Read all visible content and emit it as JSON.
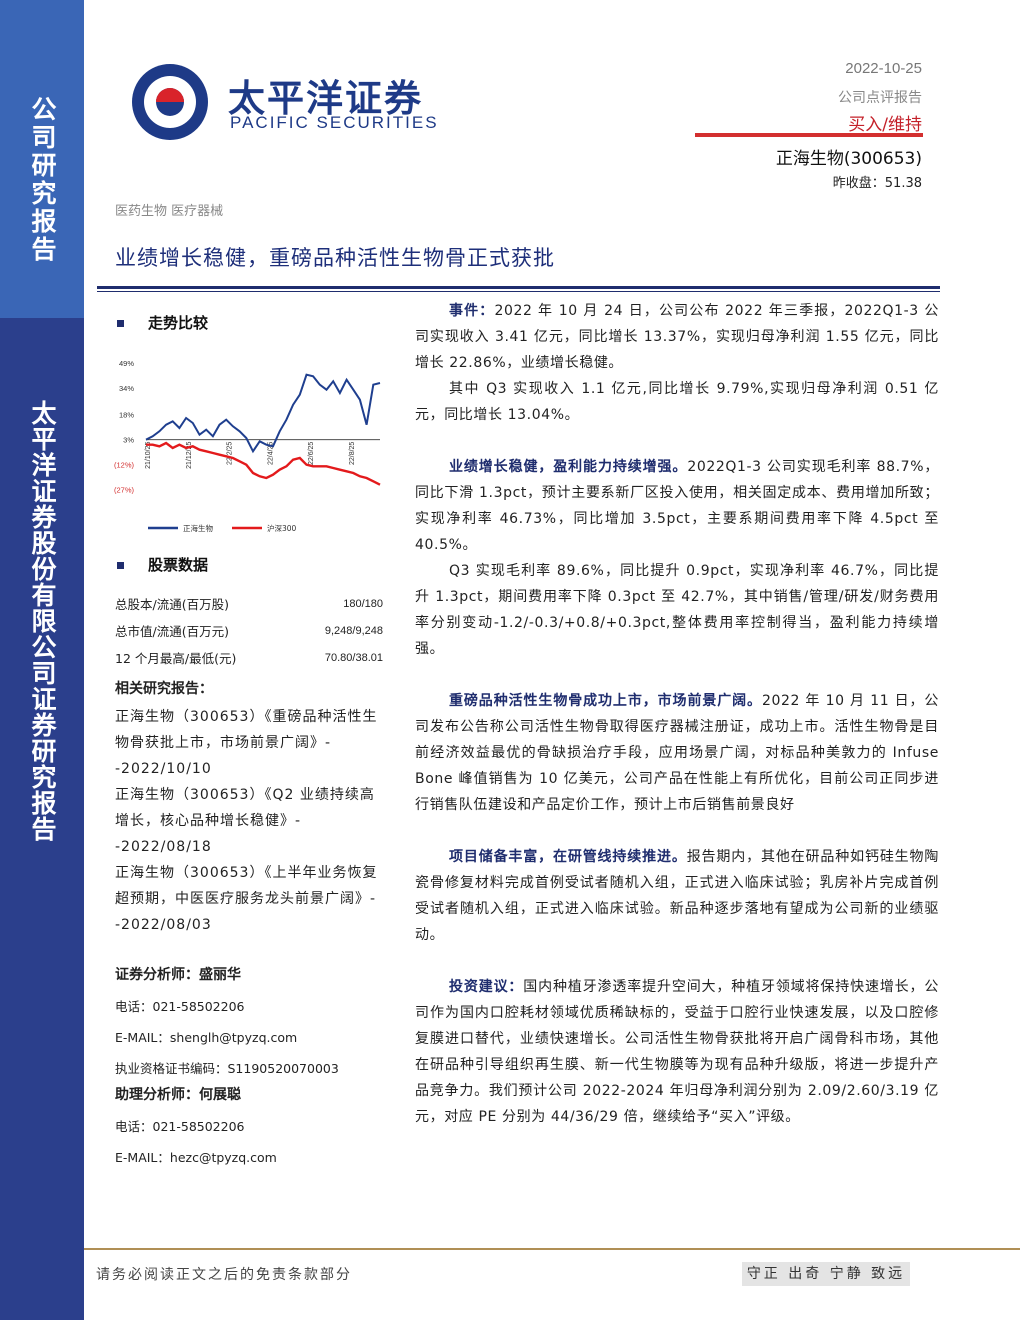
{
  "sidebar": {
    "label_top": "公司研究报告",
    "label_bottom": "太平洋证券股份有限公司证券研究报告"
  },
  "header": {
    "brand_cn": "太平洋证券",
    "brand_en": "PACIFIC SECURITIES",
    "date": "2022-10-25",
    "report_type": "公司点评报告",
    "rating": "买入/维持",
    "company": "正海生物(300653)",
    "close_price": "昨收盘：51.38",
    "industry": "医药生物  医疗器械",
    "title": "业绩增长稳健，重磅品种活性生物骨正式获批"
  },
  "trend": {
    "heading": "走势比较",
    "chart_data": {
      "type": "line",
      "y_ticks": [
        "49%",
        "34%",
        "18%",
        "3%",
        "(12%)",
        "(27%)"
      ],
      "ylim": [
        -32,
        52
      ],
      "x_ticks": [
        "21/10/25",
        "21/12/25",
        "22/2/25",
        "22/4/25",
        "22/6/25",
        "22/8/25"
      ],
      "series": [
        {
          "name": "正海生物",
          "color": "#1f3f8f",
          "values": [
            3,
            5,
            8,
            12,
            14,
            10,
            16,
            13,
            6,
            9,
            5,
            12,
            15,
            11,
            8,
            4,
            -4,
            2,
            0,
            -1,
            8,
            15,
            24,
            30,
            42,
            41,
            36,
            33,
            38,
            31,
            39,
            33,
            27,
            12,
            36,
            37
          ]
        },
        {
          "name": "沪深300",
          "color": "#e31a1c",
          "values": [
            0,
            0,
            -1,
            1,
            -2,
            0,
            -2,
            -1,
            -3,
            -4,
            -5,
            -6,
            -7,
            -8,
            -10,
            -12,
            -17,
            -19,
            -20,
            -18,
            -15,
            -13,
            -9,
            -8,
            -12,
            -13,
            -13,
            -13,
            -14,
            -15,
            -16,
            -17,
            -19,
            -20,
            -22,
            -24
          ]
        }
      ]
    }
  },
  "stock_data": {
    "heading": "股票数据",
    "rows": [
      {
        "label": "总股本/流通(百万股)",
        "value": "180/180"
      },
      {
        "label": "总市值/流通(百万元)",
        "value": "9,248/9,248"
      },
      {
        "label": "12 个月最高/最低(元)",
        "value": "70.80/38.01"
      }
    ]
  },
  "related_reports": {
    "heading": "相关研究报告：",
    "items": [
      "正海生物（300653）《重磅品种活性生物骨获批上市，市场前景广阔》--2022/10/10",
      "正海生物（300653）《Q2 业绩持续高增长，核心品种增长稳健》--2022/08/18",
      "正海生物（300653）《上半年业务恢复超预期，中医医疗服务龙头前景广阔》--2022/08/03"
    ]
  },
  "analyst": {
    "heading": "证券分析师：盛丽华",
    "phone": "电话：021-58502206",
    "email": "E-MAIL：shenglh@tpyzq.com",
    "cert": "执业资格证书编码：S1190520070003"
  },
  "assistant": {
    "heading": "助理分析师：何展聪",
    "phone": "电话：021-58502206",
    "email": "E-MAIL：hezc@tpyzq.com"
  },
  "body": {
    "p1_hl": "事件：",
    "p1": "2022 年 10 月 24 日，公司公布 2022 年三季报，2022Q1-3 公司实现收入 3.41 亿元，同比增长 13.37%，实现归母净利润 1.55 亿元，同比增长 22.86%，业绩增长稳健。",
    "p2": "其中 Q3 实现收入 1.1 亿元,同比增长 9.79%,实现归母净利润 0.51 亿元，同比增长 13.04%。",
    "p3_hl": "业绩增长稳健，盈利能力持续增强。",
    "p3": "2022Q1-3 公司实现毛利率 88.7%，同比下滑 1.3pct，预计主要系新厂区投入使用，相关固定成本、费用增加所致；实现净利率 46.73%，同比增加 3.5pct，主要系期间费用率下降 4.5pct 至 40.5%。",
    "p4": "Q3 实现毛利率 89.6%，同比提升 0.9pct，实现净利率 46.7%，同比提升 1.3pct，期间费用率下降 0.3pct 至 42.7%，其中销售/管理/研发/财务费用率分别变动-1.2/-0.3/+0.8/+0.3pct,整体费用率控制得当，盈利能力持续增强。",
    "p5_hl": "重磅品种活性生物骨成功上市，市场前景广阔。",
    "p5": "2022 年 10 月 11 日，公司发布公告称公司活性生物骨取得医疗器械注册证，成功上市。活性生物骨是目前经济效益最优的骨缺损治疗手段，应用场景广阔，对标品种美敦力的 Infuse Bone 峰值销售为 10 亿美元，公司产品在性能上有所优化，目前公司正同步进行销售队伍建设和产品定价工作，预计上市后销售前景良好",
    "p6_hl": "项目储备丰富，在研管线持续推进。",
    "p6": "报告期内，其他在研品种如钙硅生物陶瓷骨修复材料完成首例受试者随机入组，正式进入临床试验；乳房补片完成首例受试者随机入组，正式进入临床试验。新品种逐步落地有望成为公司新的业绩驱动。",
    "p7_hl": "投资建议：",
    "p7": "国内种植牙渗透率提升空间大，种植牙领域将保持快速增长，公司作为国内口腔耗材领域优质稀缺标的，受益于口腔行业快速发展，以及口腔修复膜进口替代，业绩快速增长。公司活性生物骨获批将开启广阔骨科市场，其他在研品种引导组织再生膜、新一代生物膜等为现有品种升级版，将进一步提升产品竞争力。我们预计公司 2022-2024 年归母净利润分别为 2.09/2.60/3.19 亿元，对应 PE 分别为 44/36/29 倍，继续给予“买入”评级。"
  },
  "footer": {
    "left": "请务必阅读正文之后的免责条款部分",
    "right": "守正 出奇 宁静 致远"
  }
}
